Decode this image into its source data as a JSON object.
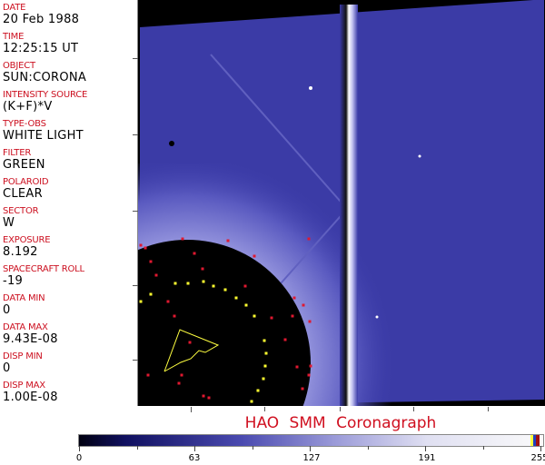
{
  "metadata": [
    {
      "label": "DATE",
      "value": "20 Feb 1988"
    },
    {
      "label": "TIME",
      "value": "12:25:15 UT"
    },
    {
      "label": "OBJECT",
      "value": "SUN:CORONA"
    },
    {
      "label": "INTENSITY SOURCE",
      "value": "(K+F)*V"
    },
    {
      "label": "TYPE-OBS",
      "value": "WHITE LIGHT"
    },
    {
      "label": "FILTER",
      "value": "GREEN"
    },
    {
      "label": "POLAROID",
      "value": "CLEAR"
    },
    {
      "label": "SECTOR",
      "value": "W"
    },
    {
      "label": "EXPOSURE",
      "value": "8.192"
    },
    {
      "label": "SPACECRAFT ROLL",
      "value": "-19"
    },
    {
      "label": "DATA MIN",
      "value": "0"
    },
    {
      "label": "DATA MAX",
      "value": "9.43E-08"
    },
    {
      "label": "DISP MIN",
      "value": "0"
    },
    {
      "label": "DISP MAX",
      "value": "1.00E-08"
    }
  ],
  "title": "HAO   SMM Coronagraph",
  "colorbar": {
    "ticks": [
      "0",
      "63",
      "127",
      "191",
      "255"
    ],
    "colors": {
      "low": "#000010",
      "mid": "#4a4ab0",
      "high": "#fafafa",
      "label": "#d01020"
    }
  }
}
